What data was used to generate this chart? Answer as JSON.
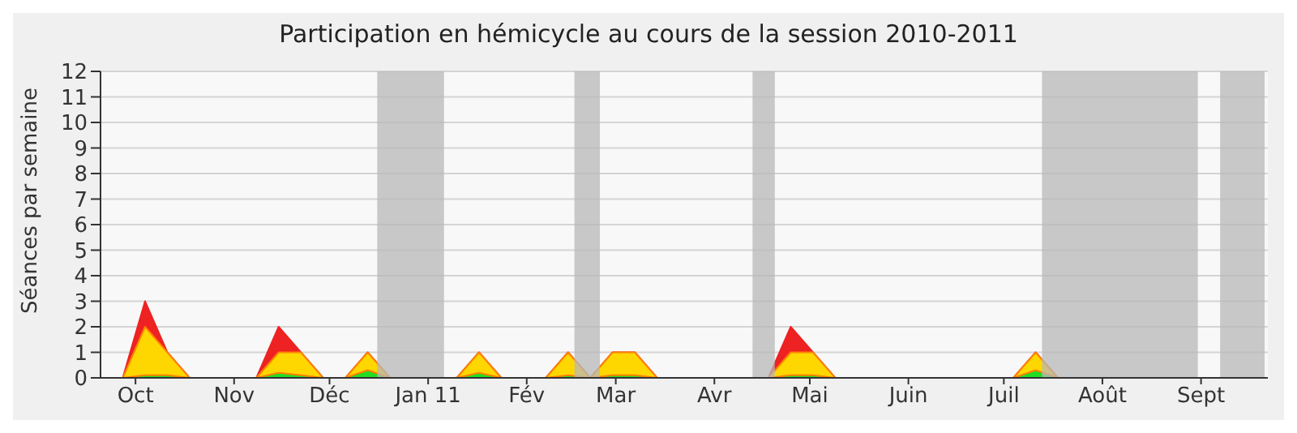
{
  "chart_data": {
    "type": "area",
    "title": "Participation en hémicycle au cours de la session 2010-2011",
    "ylabel": "Séances par semaine",
    "x": [
      "2010-09-20",
      "2010-09-27",
      "2010-10-04",
      "2010-10-11",
      "2010-10-18",
      "2010-10-25",
      "2010-11-01",
      "2010-11-08",
      "2010-11-15",
      "2010-11-22",
      "2010-11-29",
      "2010-12-06",
      "2010-12-13",
      "2010-12-20",
      "2010-12-27",
      "2011-01-03",
      "2011-01-10",
      "2011-01-17",
      "2011-01-24",
      "2011-01-31",
      "2011-02-07",
      "2011-02-14",
      "2011-02-21",
      "2011-02-28",
      "2011-03-07",
      "2011-03-14",
      "2011-03-21",
      "2011-03-28",
      "2011-04-04",
      "2011-04-11",
      "2011-04-18",
      "2011-04-25",
      "2011-05-02",
      "2011-05-09",
      "2011-05-16",
      "2011-05-23",
      "2011-05-30",
      "2011-06-06",
      "2011-06-13",
      "2011-06-20",
      "2011-06-27",
      "2011-07-04",
      "2011-07-11",
      "2011-07-18",
      "2011-07-25",
      "2011-08-01",
      "2011-08-08",
      "2011-08-15",
      "2011-08-22",
      "2011-08-29",
      "2011-09-05",
      "2011-09-12",
      "2011-09-19"
    ],
    "series": [
      {
        "color": "#ee2222",
        "values": [
          0,
          0,
          3,
          1,
          0,
          0,
          0,
          0,
          2,
          1,
          0,
          0,
          1,
          0,
          0,
          0,
          0,
          1,
          0,
          0,
          0,
          1,
          0,
          1,
          1,
          0,
          0,
          0,
          0,
          0,
          0,
          2,
          1,
          0,
          0,
          0,
          0,
          0,
          0,
          0,
          0,
          0,
          1,
          0,
          0,
          0,
          0,
          0,
          0,
          0,
          0,
          0,
          0
        ]
      },
      {
        "color": "#ffd700",
        "values": [
          0,
          0,
          2,
          1,
          0,
          0,
          0,
          0,
          1,
          1,
          0,
          0,
          1,
          0,
          0,
          0,
          0,
          1,
          0,
          0,
          0,
          1,
          0,
          1,
          1,
          0,
          0,
          0,
          0,
          0,
          0,
          1,
          1,
          0,
          0,
          0,
          0,
          0,
          0,
          0,
          0,
          0,
          1,
          0,
          0,
          0,
          0,
          0,
          0,
          0,
          0,
          0,
          0
        ]
      },
      {
        "color": "#22dd22",
        "values": [
          0,
          0,
          0.1,
          0.1,
          0,
          0,
          0,
          0,
          0.2,
          0.1,
          0,
          0,
          0.3,
          0,
          0,
          0,
          0,
          0.2,
          0,
          0,
          0,
          0.1,
          0,
          0.1,
          0.1,
          0,
          0,
          0,
          0,
          0,
          0,
          0.1,
          0.1,
          0,
          0,
          0,
          0,
          0,
          0,
          0,
          0,
          0,
          0.3,
          0,
          0,
          0,
          0,
          0,
          0,
          0,
          0,
          0,
          0
        ]
      }
    ],
    "xlim": [
      "2010-09-20",
      "2011-09-22"
    ],
    "xticks": [
      {
        "value": "2010-10-01",
        "label": "Oct"
      },
      {
        "value": "2010-11-01",
        "label": "Nov"
      },
      {
        "value": "2010-12-01",
        "label": "Déc"
      },
      {
        "value": "2011-01-01",
        "label": "Jan 11"
      },
      {
        "value": "2011-02-01",
        "label": "Fév"
      },
      {
        "value": "2011-03-01",
        "label": "Mar"
      },
      {
        "value": "2011-04-01",
        "label": "Avr"
      },
      {
        "value": "2011-05-01",
        "label": "Mai"
      },
      {
        "value": "2011-06-01",
        "label": "Juin"
      },
      {
        "value": "2011-07-01",
        "label": "Juil"
      },
      {
        "value": "2011-08-01",
        "label": "Août"
      },
      {
        "value": "2011-09-01",
        "label": "Sept"
      }
    ],
    "ylim": [
      0,
      12
    ],
    "yticks": [
      0,
      1,
      2,
      3,
      4,
      5,
      6,
      7,
      8,
      9,
      10,
      11,
      12
    ],
    "bands": [
      {
        "axis": "x",
        "from": "2010-12-16",
        "to": "2011-01-06",
        "color": "#b8b8b8"
      },
      {
        "axis": "x",
        "from": "2011-02-16",
        "to": "2011-02-24",
        "color": "#b8b8b8"
      },
      {
        "axis": "x",
        "from": "2011-04-13",
        "to": "2011-04-20",
        "color": "#b8b8b8"
      },
      {
        "axis": "x",
        "from": "2011-07-13",
        "to": "2011-08-31",
        "color": "#b8b8b8"
      },
      {
        "axis": "x",
        "from": "2011-09-07",
        "to": "2011-09-21",
        "color": "#b8b8b8"
      }
    ],
    "grid": "y",
    "legend": false
  }
}
